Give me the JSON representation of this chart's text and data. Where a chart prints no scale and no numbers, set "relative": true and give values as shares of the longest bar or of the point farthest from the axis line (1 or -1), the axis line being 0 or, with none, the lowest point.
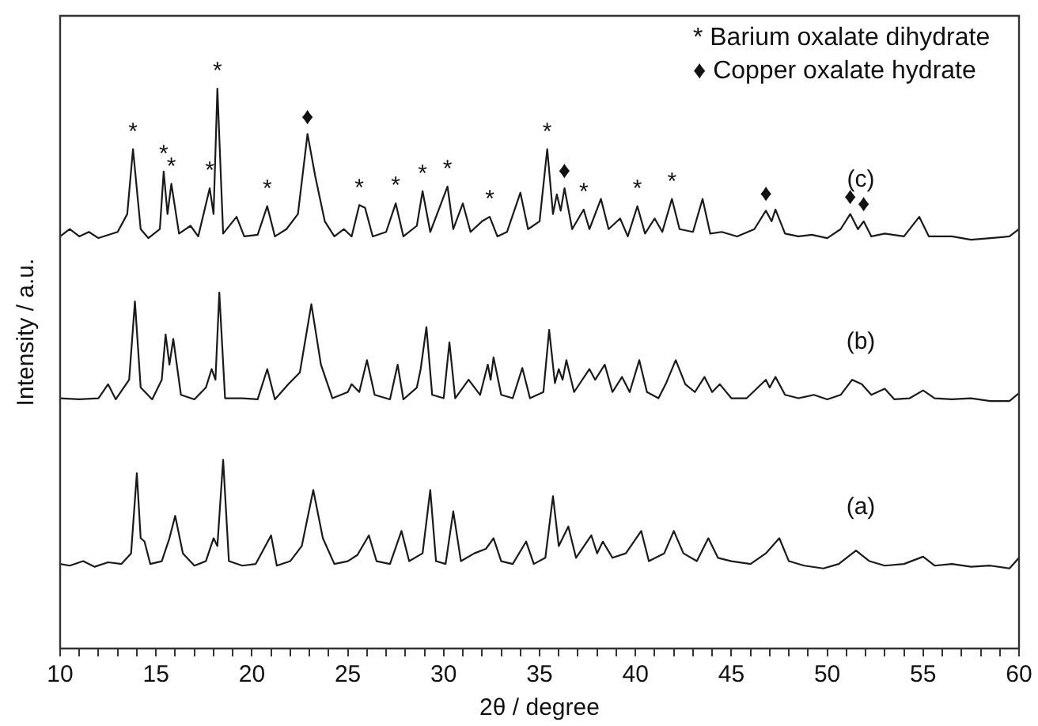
{
  "chart_data": {
    "type": "line",
    "relative": true,
    "xlabel": "2θ / degree",
    "ylabel": "Intensity / a.u.",
    "xlim": [
      10,
      60
    ],
    "xticks": [
      10,
      {
        "value": 11,
        "label": null
      },
      {
        "value": 12,
        "label": null
      },
      {
        "value": 13,
        "label": null
      },
      {
        "value": 14,
        "label": null
      },
      15,
      {
        "value": 16,
        "label": null
      },
      {
        "value": 17,
        "label": null
      },
      {
        "value": 18,
        "label": null
      },
      {
        "value": 19,
        "label": null
      },
      20,
      {
        "value": 21,
        "label": null
      },
      {
        "value": 22,
        "label": null
      },
      {
        "value": 23,
        "label": null
      },
      {
        "value": 24,
        "label": null
      },
      25,
      {
        "value": 26,
        "label": null
      },
      {
        "value": 27,
        "label": null
      },
      {
        "value": 28,
        "label": null
      },
      {
        "value": 29,
        "label": null
      },
      30,
      {
        "value": 31,
        "label": null
      },
      {
        "value": 32,
        "label": null
      },
      {
        "value": 33,
        "label": null
      },
      {
        "value": 34,
        "label": null
      },
      35,
      {
        "value": 36,
        "label": null
      },
      {
        "value": 37,
        "label": null
      },
      {
        "value": 38,
        "label": null
      },
      {
        "value": 39,
        "label": null
      },
      40,
      {
        "value": 41,
        "label": null
      },
      {
        "value": 42,
        "label": null
      },
      {
        "value": 43,
        "label": null
      },
      {
        "value": 44,
        "label": null
      },
      45,
      {
        "value": 46,
        "label": null
      },
      {
        "value": 47,
        "label": null
      },
      {
        "value": 48,
        "label": null
      },
      {
        "value": 49,
        "label": null
      },
      50,
      {
        "value": 51,
        "label": null
      },
      {
        "value": 52,
        "label": null
      },
      {
        "value": 53,
        "label": null
      },
      {
        "value": 54,
        "label": null
      },
      55,
      {
        "value": 56,
        "label": null
      },
      {
        "value": 57,
        "label": null
      },
      {
        "value": 58,
        "label": null
      },
      {
        "value": 59,
        "label": null
      },
      60
    ],
    "tick_labels": "x",
    "grid": false,
    "legend": false,
    "marker": "none",
    "line_style": "solid",
    "series": [
      {
        "name": "(c)",
        "color": "#1a1a1a",
        "x": [
          10,
          10.5,
          11,
          11.5,
          12,
          13,
          13.5,
          13.8,
          14.2,
          14.6,
          15.2,
          15.4,
          15.6,
          15.8,
          16.2,
          16.8,
          17.2,
          17.8,
          18.0,
          18.2,
          18.5,
          19.2,
          19.6,
          20.3,
          20.8,
          21.2,
          21.8,
          22.4,
          22.9,
          23.3,
          23.8,
          24.3,
          24.8,
          25.2,
          25.6,
          25.9,
          26.3,
          27.0,
          27.5,
          27.9,
          28.6,
          28.9,
          29.3,
          30.2,
          30.5,
          31.0,
          31.4,
          32.0,
          32.4,
          32.8,
          33.3,
          34.0,
          34.4,
          35.0,
          35.4,
          35.7,
          35.9,
          36.1,
          36.3,
          36.7,
          37.3,
          37.6,
          38.2,
          38.6,
          39.2,
          39.6,
          40.1,
          40.5,
          41.0,
          41.4,
          41.9,
          42.3,
          43.0,
          43.5,
          43.9,
          44.5,
          45.3,
          46.2,
          46.8,
          47.1,
          47.3,
          47.8,
          48.5,
          49.2,
          50.0,
          50.7,
          51.2,
          51.6,
          51.9,
          52.3,
          53.0,
          54.0,
          54.8,
          55.3,
          56.5,
          57.5,
          58.5,
          59.5,
          60
        ],
        "values": [
          0.736,
          0.749,
          0.736,
          0.744,
          0.733,
          0.744,
          0.776,
          0.892,
          0.749,
          0.733,
          0.749,
          0.852,
          0.776,
          0.83,
          0.741,
          0.755,
          0.736,
          0.822,
          0.776,
          1,
          0.741,
          0.771,
          0.736,
          0.739,
          0.79,
          0.736,
          0.749,
          0.776,
          0.919,
          0.844,
          0.763,
          0.736,
          0.749,
          0.736,
          0.792,
          0.787,
          0.736,
          0.744,
          0.795,
          0.736,
          0.755,
          0.817,
          0.744,
          0.825,
          0.749,
          0.795,
          0.744,
          0.763,
          0.771,
          0.736,
          0.744,
          0.814,
          0.749,
          0.763,
          0.892,
          0.776,
          0.811,
          0.782,
          0.822,
          0.749,
          0.784,
          0.749,
          0.803,
          0.749,
          0.768,
          0.736,
          0.79,
          0.741,
          0.768,
          0.744,
          0.803,
          0.749,
          0.744,
          0.803,
          0.741,
          0.744,
          0.736,
          0.749,
          0.782,
          0.763,
          0.784,
          0.741,
          0.736,
          0.739,
          0.733,
          0.749,
          0.776,
          0.749,
          0.763,
          0.736,
          0.741,
          0.736,
          0.771,
          0.736,
          0.736,
          0.73,
          0.733,
          0.736,
          0.749
        ]
      },
      {
        "name": "(b)",
        "color": "#1a1a1a",
        "x": [
          10,
          11,
          12,
          12.5,
          12.9,
          13.6,
          13.9,
          14.2,
          14.8,
          15.3,
          15.5,
          15.7,
          15.9,
          16.3,
          17.0,
          17.6,
          17.9,
          18.1,
          18.3,
          18.6,
          19.5,
          20.3,
          20.8,
          21.2,
          21.9,
          22.5,
          23.1,
          23.6,
          24.2,
          25.0,
          25.2,
          25.6,
          26.0,
          26.4,
          27.2,
          27.6,
          27.9,
          28.6,
          28.8,
          29.1,
          29.4,
          30.0,
          30.3,
          30.6,
          31.3,
          31.9,
          32.3,
          32.45,
          32.6,
          33.0,
          33.6,
          34.1,
          34.5,
          35.2,
          35.5,
          35.8,
          36.0,
          36.2,
          36.4,
          36.8,
          37.6,
          37.9,
          38.4,
          38.8,
          39.3,
          39.7,
          40.2,
          40.6,
          41.2,
          41.6,
          42.1,
          42.6,
          43.1,
          43.6,
          44.0,
          44.4,
          45.0,
          45.8,
          46.8,
          47.0,
          47.3,
          47.8,
          48.5,
          49.3,
          50.0,
          50.7,
          51.3,
          51.8,
          52.3,
          53.0,
          53.5,
          54.3,
          55.0,
          55.6,
          56.5,
          57.5,
          58.5,
          59.5,
          60
        ],
        "values": [
          0.447,
          0.445,
          0.447,
          0.472,
          0.445,
          0.48,
          0.62,
          0.466,
          0.445,
          0.48,
          0.561,
          0.507,
          0.553,
          0.453,
          0.445,
          0.466,
          0.499,
          0.48,
          0.636,
          0.447,
          0.447,
          0.445,
          0.499,
          0.445,
          0.472,
          0.493,
          0.615,
          0.507,
          0.447,
          0.458,
          0.472,
          0.458,
          0.515,
          0.453,
          0.445,
          0.507,
          0.445,
          0.466,
          0.499,
          0.574,
          0.453,
          0.447,
          0.547,
          0.447,
          0.48,
          0.453,
          0.507,
          0.48,
          0.52,
          0.453,
          0.447,
          0.501,
          0.447,
          0.458,
          0.569,
          0.474,
          0.499,
          0.48,
          0.515,
          0.458,
          0.499,
          0.48,
          0.507,
          0.458,
          0.485,
          0.458,
          0.515,
          0.458,
          0.447,
          0.474,
          0.515,
          0.472,
          0.458,
          0.485,
          0.458,
          0.472,
          0.447,
          0.447,
          0.48,
          0.466,
          0.485,
          0.453,
          0.447,
          0.453,
          0.445,
          0.453,
          0.48,
          0.472,
          0.453,
          0.464,
          0.445,
          0.447,
          0.461,
          0.447,
          0.445,
          0.447,
          0.442,
          0.442,
          0.456
        ]
      },
      {
        "name": "(a)",
        "color": "#1a1a1a",
        "x": [
          10,
          10.5,
          11.2,
          11.8,
          12.5,
          13.2,
          13.7,
          14.0,
          14.2,
          14.4,
          14.7,
          15.3,
          15.7,
          16.0,
          16.4,
          17.0,
          17.6,
          18.0,
          18.2,
          18.5,
          18.8,
          19.5,
          20.2,
          21.0,
          21.3,
          22.0,
          22.6,
          23.2,
          23.7,
          24.3,
          25.0,
          25.5,
          26.1,
          26.5,
          27.2,
          27.8,
          28.2,
          28.9,
          29.3,
          29.6,
          30.1,
          30.5,
          30.9,
          31.6,
          32.2,
          32.6,
          33.0,
          33.6,
          34.3,
          34.7,
          35.3,
          35.7,
          36.0,
          36.5,
          36.9,
          37.7,
          38.0,
          38.3,
          38.8,
          39.5,
          40.3,
          40.7,
          41.5,
          42.0,
          42.5,
          43.2,
          43.8,
          44.3,
          45.0,
          46.0,
          46.8,
          47.5,
          48.0,
          48.8,
          49.8,
          50.6,
          51.5,
          52.2,
          53.0,
          54.0,
          55.0,
          55.6,
          56.5,
          57.5,
          58.5,
          59.5,
          60
        ],
        "values": [
          0.151,
          0.148,
          0.156,
          0.146,
          0.154,
          0.151,
          0.17,
          0.313,
          0.197,
          0.191,
          0.151,
          0.156,
          0.197,
          0.237,
          0.17,
          0.148,
          0.156,
          0.197,
          0.183,
          0.337,
          0.156,
          0.148,
          0.151,
          0.202,
          0.148,
          0.156,
          0.183,
          0.283,
          0.197,
          0.151,
          0.156,
          0.167,
          0.202,
          0.156,
          0.151,
          0.21,
          0.156,
          0.17,
          0.283,
          0.156,
          0.151,
          0.245,
          0.156,
          0.17,
          0.178,
          0.197,
          0.156,
          0.151,
          0.191,
          0.151,
          0.162,
          0.272,
          0.183,
          0.218,
          0.162,
          0.202,
          0.17,
          0.191,
          0.162,
          0.17,
          0.21,
          0.156,
          0.17,
          0.21,
          0.17,
          0.156,
          0.197,
          0.162,
          0.156,
          0.151,
          0.17,
          0.197,
          0.156,
          0.148,
          0.143,
          0.151,
          0.175,
          0.156,
          0.148,
          0.151,
          0.164,
          0.148,
          0.151,
          0.146,
          0.148,
          0.143,
          0.162
        ]
      }
    ],
    "annotations": [
      "* Barium oxalate dihydrate",
      "♦ Copper oxalate hydrate",
      {
        "text": "*",
        "x": 13.8,
        "y": 0.892
      },
      {
        "text": "*",
        "x": 15.4,
        "y": 0.852
      },
      {
        "text": "*",
        "x": 15.8,
        "y": 0.83
      },
      {
        "text": "*",
        "x": 17.8,
        "y": 0.822
      },
      {
        "text": "*",
        "x": 18.2,
        "y": 1
      },
      {
        "text": "*",
        "x": 20.8,
        "y": 0.79
      },
      {
        "text": "♦",
        "x": 22.9,
        "y": 0.919
      },
      {
        "text": "*",
        "x": 25.6,
        "y": 0.792
      },
      {
        "text": "*",
        "x": 27.5,
        "y": 0.795
      },
      {
        "text": "*",
        "x": 28.9,
        "y": 0.817
      },
      {
        "text": "*",
        "x": 30.2,
        "y": 0.825
      },
      {
        "text": "*",
        "x": 32.4,
        "y": 0.771
      },
      {
        "text": "*",
        "x": 35.4,
        "y": 0.892
      },
      {
        "text": "♦",
        "x": 36.3,
        "y": 0.822
      },
      {
        "text": "*",
        "x": 37.3,
        "y": 0.784
      },
      {
        "text": "*",
        "x": 40.1,
        "y": 0.79
      },
      {
        "text": "*",
        "x": 41.9,
        "y": 0.803
      },
      {
        "text": "♦",
        "x": 46.8,
        "y": 0.782
      },
      {
        "text": "♦",
        "x": 51.2,
        "y": 0.776
      },
      {
        "text": "♦",
        "x": 51.9,
        "y": 0.763
      }
    ]
  }
}
